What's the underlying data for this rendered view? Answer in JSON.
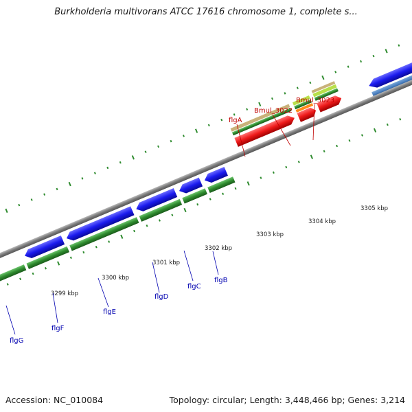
{
  "title": "Burkholderia multivorans ATCC 17616 chromosome 1, complete s...",
  "footer": {
    "accession": "Accession: NC_010084",
    "summary": "Topology: circular; Length: 3,448,466 bp; Genes: 3,214"
  },
  "colors": {
    "backbone": "#8a8a8a",
    "blue_gene": "#1a1aee",
    "green_cds": "#2e8b2e",
    "red_gene": "#ee1a1a",
    "tick": "#2e8b2e",
    "blue_label": "#0000b0",
    "red_label": "#c00000"
  },
  "scale_labels": [
    "3299 kbp",
    "3300 kbp",
    "3301 kbp",
    "3302 kbp",
    "3303 kbp",
    "3304 kbp",
    "3305 kbp"
  ],
  "genes_lower": [
    "flgG",
    "flgF",
    "flgE",
    "flgD",
    "flgC",
    "flgB"
  ],
  "genes_upper": [
    "flgA",
    "Bmul_3022",
    "Bmul_3023"
  ]
}
